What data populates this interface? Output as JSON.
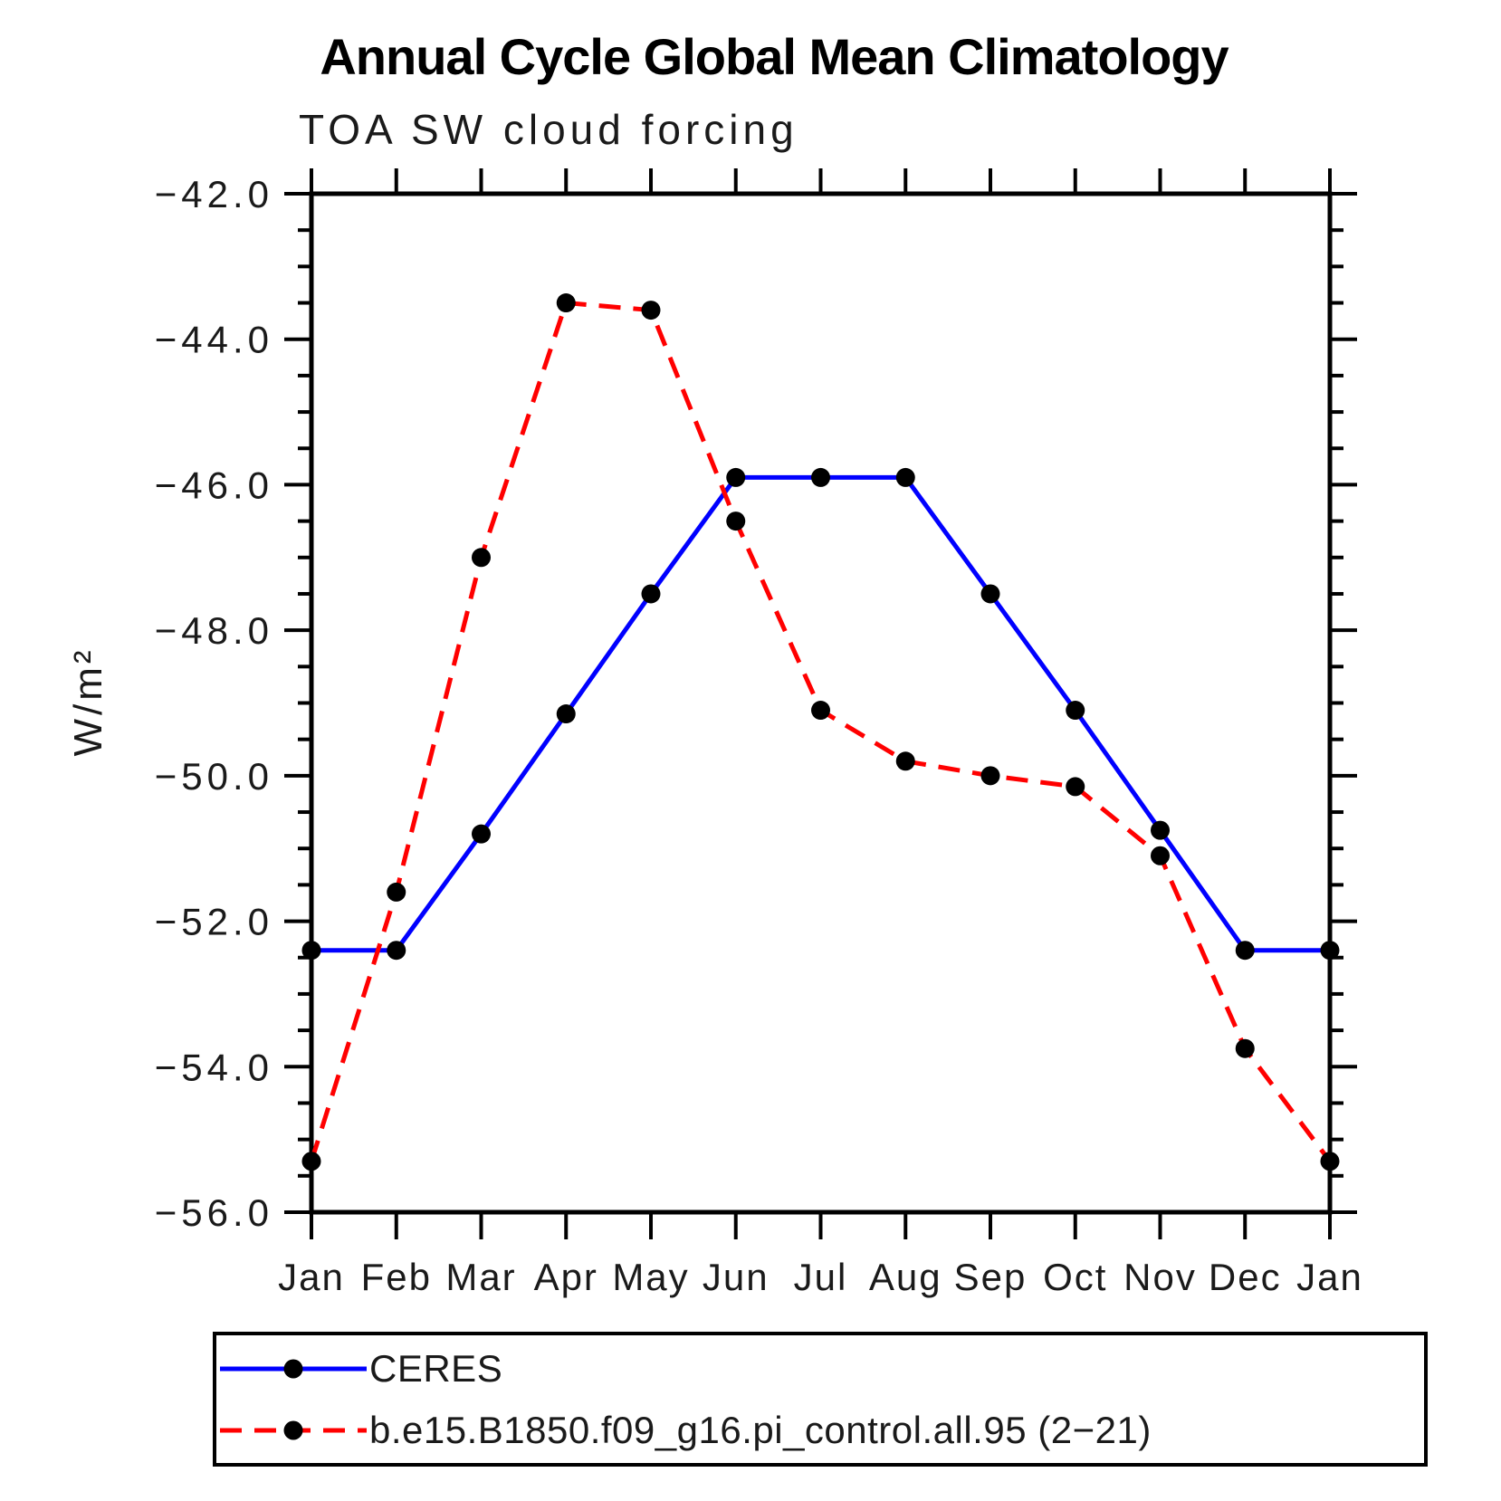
{
  "title": "Annual Cycle Global Mean Climatology",
  "subtitle": "TOA SW cloud forcing",
  "y_axis_label": "W/m²",
  "colors": {
    "ceres_line": "#0000ff",
    "model_line": "#ff0000",
    "marker": "#000000",
    "axis": "#000000"
  },
  "chart_data": {
    "type": "line",
    "title": "TOA SW cloud forcing",
    "categories": [
      "Jan",
      "Feb",
      "Mar",
      "Apr",
      "May",
      "Jun",
      "Jul",
      "Aug",
      "Sep",
      "Oct",
      "Nov",
      "Dec",
      "Jan"
    ],
    "series": [
      {
        "name": "CERES",
        "color": "#0000ff",
        "line_style": "solid",
        "marker": "filled-circle",
        "marker_color": "#000000",
        "values": [
          -52.4,
          -52.4,
          -50.8,
          -49.15,
          -47.5,
          -45.9,
          -45.9,
          -45.9,
          -47.5,
          -49.1,
          -50.75,
          -52.4,
          -52.4
        ]
      },
      {
        "name": "b.e15.B1850.f09_g16.pi_control.all.95 (2−21)",
        "color": "#ff0000",
        "line_style": "dashed",
        "marker": "filled-circle",
        "marker_color": "#000000",
        "values": [
          -55.3,
          -51.6,
          -47.0,
          -43.5,
          -43.6,
          -46.5,
          -49.1,
          -49.8,
          -50.0,
          -50.15,
          -51.1,
          -53.75,
          -55.3
        ]
      }
    ],
    "xlabel": "",
    "ylabel": "W/m²",
    "ylim": [
      -56.0,
      -42.0
    ],
    "ytick_major": 2.0,
    "ytick_minor": 0.5,
    "ytick_labels": [
      "−42.0",
      "−44.0",
      "−46.0",
      "−48.0",
      "−50.0",
      "−52.0",
      "−54.0",
      "−56.0"
    ],
    "grid": false,
    "legend_position": "bottom"
  }
}
